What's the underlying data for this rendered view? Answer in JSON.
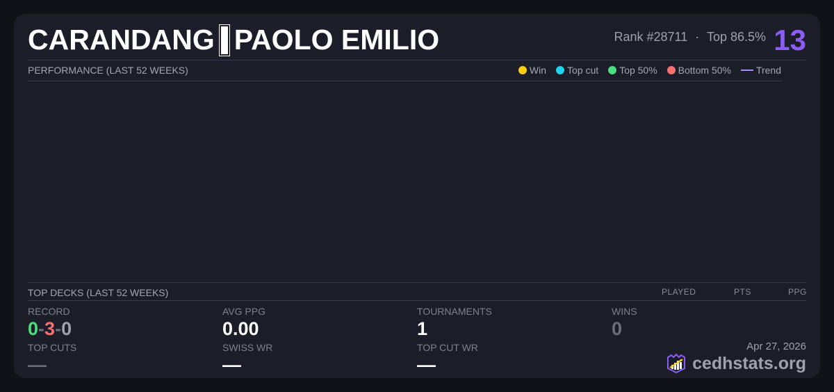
{
  "player": {
    "name_last": "CARANDANG",
    "name_first": "PAOLO EMILIO",
    "rank": "Rank #28711",
    "sep": "·",
    "percentile": "Top 86.5%",
    "score": "13"
  },
  "performance": {
    "title": "PERFORMANCE (LAST 52 WEEKS)",
    "legend": [
      {
        "label": "Win",
        "color": "#facc15"
      },
      {
        "label": "Top cut",
        "color": "#22d3ee"
      },
      {
        "label": "Top 50%",
        "color": "#4ade80"
      },
      {
        "label": "Bottom 50%",
        "color": "#f87171"
      },
      {
        "label": "Trend",
        "color": "#a78bfa"
      }
    ]
  },
  "top_decks": {
    "title": "TOP DECKS (LAST 52 WEEKS)",
    "columns": [
      "PLAYED",
      "PTS",
      "PPG"
    ]
  },
  "stats": {
    "record": {
      "label": "RECORD",
      "wins": "0",
      "losses": "3",
      "draws": "0",
      "sep": "-"
    },
    "avg_ppg": {
      "label": "AVG PPG",
      "value": "0.00"
    },
    "tournaments": {
      "label": "TOURNAMENTS",
      "value": "1"
    },
    "wins": {
      "label": "WINS",
      "value": "0"
    },
    "top_cuts": {
      "label": "TOP CUTS",
      "value": "—"
    },
    "swiss_wr": {
      "label": "SWISS WR",
      "value": "—"
    },
    "top_cut_wr": {
      "label": "TOP CUT WR",
      "value": "—"
    }
  },
  "footer": {
    "date": "Apr 27, 2026",
    "brand": "cedhstats.org"
  }
}
